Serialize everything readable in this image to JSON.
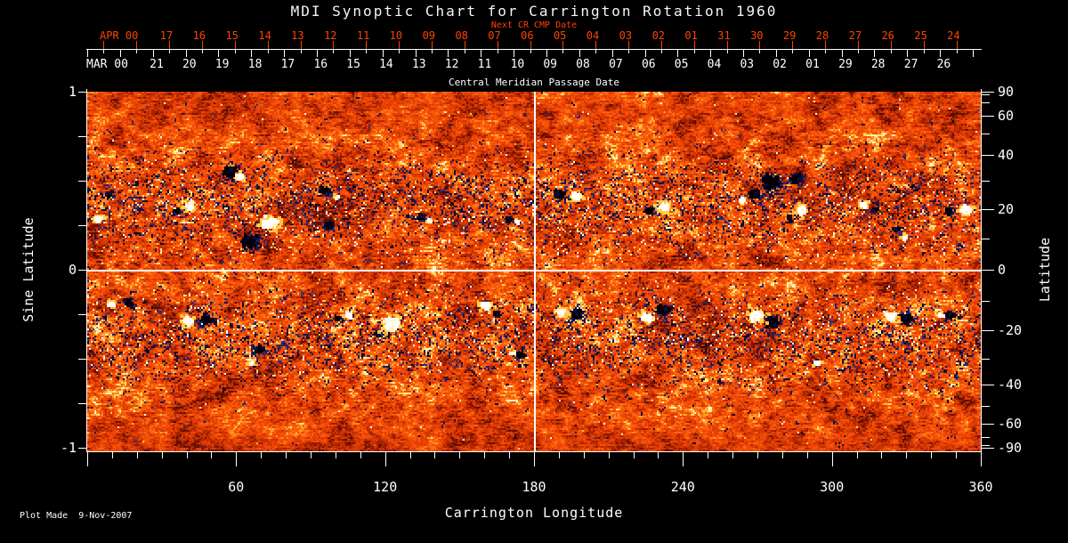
{
  "window": {
    "background": "#000000"
  },
  "title": "MDI Synoptic Chart for Carrington Rotation 1960",
  "top_axis": {
    "next_cr_label": "Next CR CMP Date",
    "red_month_label": "APR 00",
    "red_day_labels": [
      "17",
      "16",
      "15",
      "14",
      "13",
      "12",
      "11",
      "10",
      "09",
      "08",
      "07",
      "06",
      "05",
      "04",
      "03",
      "02",
      "01",
      "31",
      "30",
      "29",
      "28",
      "27",
      "26",
      "25",
      "24"
    ],
    "white_month_label": "MAR 00",
    "white_day_labels": [
      "21",
      "20",
      "19",
      "18",
      "17",
      "16",
      "15",
      "14",
      "13",
      "12",
      "11",
      "10",
      "09",
      "08",
      "07",
      "06",
      "05",
      "04",
      "03",
      "02",
      "01",
      "29",
      "28",
      "27",
      "26"
    ],
    "axis_title": "Central Meridian Passage Date",
    "red_color": "#ff4400"
  },
  "left_axis": {
    "title": "Sine Latitude",
    "labels": [
      {
        "text": "1",
        "sine": 1
      },
      {
        "text": "0",
        "sine": 0
      },
      {
        "text": "-1",
        "sine": -1
      }
    ]
  },
  "right_axis": {
    "title": "Latitude",
    "labels": [
      {
        "text": "90",
        "lat": 90
      },
      {
        "text": "60",
        "lat": 60
      },
      {
        "text": "40",
        "lat": 40
      },
      {
        "text": "20",
        "lat": 20
      },
      {
        "text": "0",
        "lat": 0
      },
      {
        "text": "-20",
        "lat": -20
      },
      {
        "text": "-40",
        "lat": -40
      },
      {
        "text": "-60",
        "lat": -60
      },
      {
        "text": "-90",
        "lat": -90
      }
    ]
  },
  "bottom_axis": {
    "title": "Carrington Longitude",
    "labels": [
      {
        "text": "60",
        "lon": 60
      },
      {
        "text": "120",
        "lon": 120
      },
      {
        "text": "180",
        "lon": 180
      },
      {
        "text": "240",
        "lon": 240
      },
      {
        "text": "300",
        "lon": 300
      },
      {
        "text": "360",
        "lon": 360
      }
    ]
  },
  "footer": "Plot Made  9-Nov-2007",
  "chart_data": {
    "type": "heatmap",
    "title": "MDI Synoptic Chart for Carrington Rotation 1960",
    "subtitle": "Next CR CMP Date",
    "xlabel": "Carrington Longitude",
    "xlim": [
      0,
      360
    ],
    "x_major_ticks": [
      60,
      120,
      180,
      240,
      300,
      360
    ],
    "x_minor_tick_step_deg": 10,
    "ylabel_left": "Sine Latitude",
    "ylim_sine": [
      -1,
      1
    ],
    "y_left_major_ticks": [
      1,
      0,
      -1
    ],
    "y_left_minor_tick_step_sine": 0.25,
    "ylabel_right": "Latitude",
    "y_right_labeled_ticks": [
      90,
      60,
      40,
      20,
      0,
      -20,
      -40,
      -60,
      -90
    ],
    "y_right_tick_step_deg": 10,
    "top_axis_title": "Central Meridian Passage Date",
    "cmp_dates_march": [
      "MAR 00",
      "21",
      "20",
      "19",
      "18",
      "17",
      "16",
      "15",
      "14",
      "13",
      "12",
      "11",
      "10",
      "09",
      "08",
      "07",
      "06",
      "05",
      "04",
      "03",
      "02",
      "01",
      "29",
      "28",
      "27",
      "26"
    ],
    "next_cr_cmp_dates_april": [
      "APR 00",
      "17",
      "16",
      "15",
      "14",
      "13",
      "12",
      "11",
      "10",
      "09",
      "08",
      "07",
      "06",
      "05",
      "04",
      "03",
      "02",
      "01",
      "31",
      "30",
      "29",
      "28",
      "27",
      "26",
      "25",
      "24"
    ],
    "grid_lines": {
      "longitude_deg": [
        180
      ],
      "sine_latitude": [
        0
      ],
      "color": "#ffffff"
    },
    "annotation": "Plot Made  9-Nov-2007",
    "colormap": {
      "description": "quiet-sun orange-red mottle; negative field dark navy/black; positive field white with yellow plage fringe",
      "base_orange": "#ea4306",
      "dark_red": "#9e2000",
      "bright_orange": "#ff6d12",
      "plage_yellow": "#ffd24a",
      "positive_white": "#ffffff",
      "negative_navy": "#1c1c5e",
      "negative_black": "#000006"
    },
    "active_regions": {
      "format": "[cx,cy,neg_dx,neg_dy,neg_r,pos_dx,pos_dy,pos_r] in 1004x404 image pixels (0,0 = lon 0 / sine lat +1)",
      "regions": [
        [
          20,
          132,
          6,
          -16,
          5,
          -6,
          12,
          6
        ],
        [
          110,
          132,
          -8,
          4,
          4,
          7,
          -2,
          7
        ],
        [
          170,
          94,
          -9,
          -3,
          10,
          3,
          3,
          6
        ],
        [
          203,
          155,
          -19,
          14,
          11,
          4,
          -6,
          12
        ],
        [
          267,
          112,
          0,
          0,
          7,
          14,
          8,
          3
        ],
        [
          272,
          152,
          0,
          0,
          6,
          0,
          0,
          0
        ],
        [
          377,
          140,
          0,
          2,
          5,
          8,
          6,
          3
        ],
        [
          475,
          145,
          0,
          0,
          4,
          8,
          2,
          3
        ],
        [
          542,
          117,
          -11,
          0,
          7,
          9,
          2,
          7
        ],
        [
          646,
          130,
          -13,
          4,
          5,
          3,
          0,
          8
        ],
        [
          770,
          103,
          0,
          0,
          13,
          0,
          0,
          0
        ],
        [
          790,
          95,
          8,
          4,
          8,
          0,
          0,
          0
        ],
        [
          745,
          120,
          6,
          -4,
          7,
          -8,
          4,
          4
        ],
        [
          797,
          134,
          -7,
          9,
          4,
          6,
          0,
          8
        ],
        [
          877,
          128,
          9,
          6,
          4,
          -4,
          0,
          6
        ],
        [
          919,
          163,
          -9,
          -7,
          5,
          1,
          3,
          5
        ],
        [
          982,
          132,
          -12,
          3,
          6,
          7,
          2,
          8
        ],
        [
          37,
          238,
          10,
          0,
          6,
          -9,
          2,
          5
        ],
        [
          124,
          259,
          11,
          -2,
          8,
          -10,
          0,
          8
        ],
        [
          192,
          293,
          2,
          -2,
          7,
          -6,
          12,
          4
        ],
        [
          288,
          252,
          -6,
          4,
          4,
          6,
          0,
          5
        ],
        [
          343,
          262,
          -15,
          10,
          5,
          0,
          0,
          12
        ],
        [
          449,
          242,
          12,
          8,
          4,
          0,
          0,
          7
        ],
        [
          487,
          297,
          0,
          0,
          5,
          -8,
          -2,
          3
        ],
        [
          542,
          249,
          9,
          2,
          8,
          -8,
          0,
          7
        ],
        [
          637,
          249,
          11,
          -2,
          9,
          -6,
          6,
          8
        ],
        [
          762,
          252,
          9,
          7,
          9,
          -9,
          0,
          11
        ],
        [
          822,
          307,
          0,
          0,
          0,
          0,
          0,
          4
        ],
        [
          912,
          254,
          9,
          2,
          9,
          -8,
          0,
          8
        ],
        [
          968,
          252,
          2,
          0,
          6,
          -8,
          0,
          3
        ]
      ]
    }
  }
}
